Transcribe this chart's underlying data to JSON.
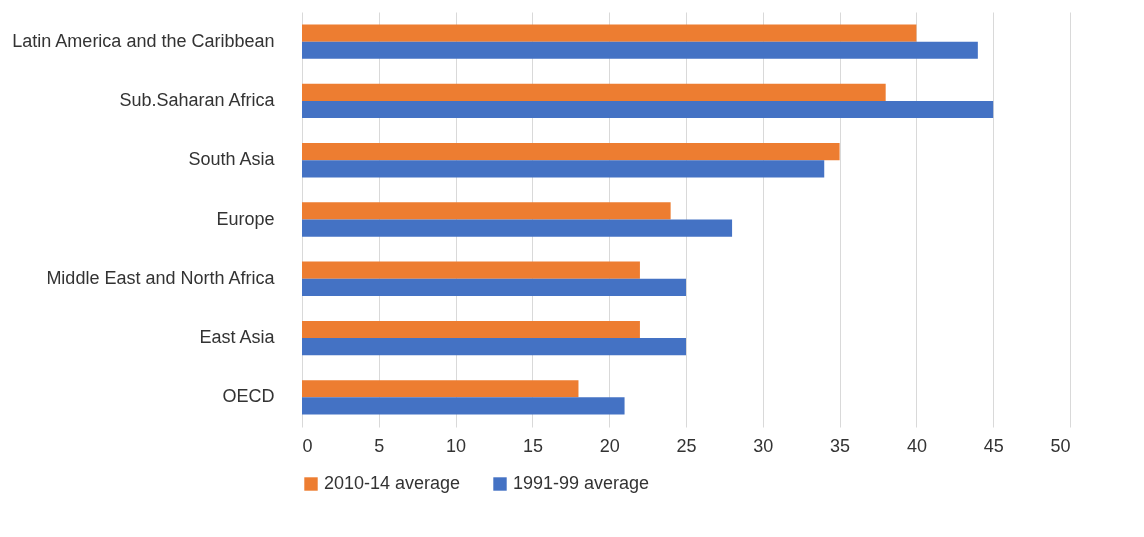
{
  "chart_data": {
    "type": "bar",
    "orientation": "horizontal",
    "categories": [
      "Latin America and the Caribbean",
      "Sub.Saharan Africa",
      "South Asia",
      "Europe",
      "Middle East and North Africa",
      "East Asia",
      "OECD"
    ],
    "series": [
      {
        "name": "2010-14 average",
        "color": "#ed7d31",
        "values": [
          40,
          38,
          35,
          24,
          22,
          22,
          18
        ]
      },
      {
        "name": "1991-99 average",
        "color": "#4472c4",
        "values": [
          44,
          45,
          34,
          28,
          25,
          25,
          21
        ]
      }
    ],
    "xlim": [
      0,
      50
    ],
    "xticks": [
      0,
      5,
      10,
      15,
      20,
      25,
      30,
      35,
      40,
      45,
      50
    ],
    "grid": "x",
    "legend": "bottom"
  }
}
